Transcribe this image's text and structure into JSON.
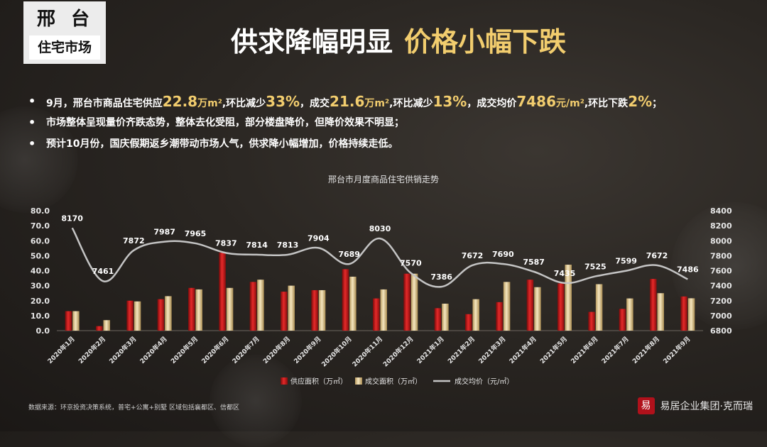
{
  "badge": {
    "city": "邢台",
    "subtitle": "住宅市场"
  },
  "headline": {
    "part1": "供求降幅明显",
    "part2": "价格小幅下跌"
  },
  "bullets": {
    "line1": {
      "p1": "9月，邢台市商品住宅供应",
      "v1": "22.8",
      "u1": "万m²",
      "p2": ",环比减少",
      "v2": "33%",
      "p3": "，成交",
      "v3": "21.6",
      "u3": "万m²",
      "p4": ",环比减少",
      "v4": "13%",
      "p5": "，成交均价",
      "v5": "7486",
      "u5": "元/m²",
      "p6": ",环比下跌",
      "v6": "2%",
      "p7": "；"
    },
    "line2": "市场整体呈现量价齐跌态势，整体去化受阻，部分楼盘降价，但降价效果不明显；",
    "line3": "预计10月份，国庆假期返乡潮带动市场人气，供求降小幅增加，价格持续走低。"
  },
  "footer": {
    "source": "数据来源：环京投资决策系统，普宅+公寓+别墅    区域包括襄都区、信都区",
    "logo_seal": "易",
    "logo_text": "易居企业集团·克而瑞"
  },
  "colors": {
    "supply": "#d11a1a",
    "deal": "#e8d3a0",
    "price": "#bdbdbd",
    "accent": "#f2cd6e"
  },
  "chart_data": {
    "type": "bar",
    "title": "邢台市月度商品住宅供销走势",
    "categories": [
      "2020年1月",
      "2020年2月",
      "2020年3月",
      "2020年4月",
      "2020年5月",
      "2020年6月",
      "2020年7月",
      "2020年8月",
      "2020年9月",
      "2020年10月",
      "2020年11月",
      "2020年12月",
      "2021年1月",
      "2021年2月",
      "2021年3月",
      "2021年4月",
      "2021年5月",
      "2021年6月",
      "2021年7月",
      "2021年8月",
      "2021年9月"
    ],
    "series": [
      {
        "name": "供应面积（万㎡）",
        "type": "bar",
        "axis": "left",
        "values": [
          13,
          3,
          20,
          21,
          28.5,
          52,
          32.5,
          26,
          27,
          41,
          21.5,
          38,
          15,
          11,
          19,
          34,
          31.5,
          12.5,
          14.5,
          34.5,
          22.8
        ]
      },
      {
        "name": "成交面积（万㎡）",
        "type": "bar",
        "axis": "left",
        "values": [
          13,
          7,
          19.5,
          23,
          27.5,
          28.5,
          34,
          30,
          27,
          36,
          27.5,
          38,
          18,
          21,
          32.5,
          29,
          44,
          31,
          21.5,
          25,
          21.6
        ]
      },
      {
        "name": "成交均价（元/㎡）",
        "type": "line",
        "axis": "right",
        "values": [
          8170,
          7461,
          7872,
          7987,
          7965,
          7837,
          7814,
          7813,
          7904,
          7689,
          8030,
          7570,
          7386,
          7672,
          7690,
          7587,
          7435,
          7525,
          7599,
          7672,
          7486
        ]
      }
    ],
    "y_left": {
      "min": 0,
      "max": 80,
      "step": 10,
      "ticks": [
        "0.0",
        "10.0",
        "20.0",
        "30.0",
        "40.0",
        "50.0",
        "60.0",
        "70.0",
        "80.0"
      ]
    },
    "y_right": {
      "min": 6800,
      "max": 8400,
      "step": 200,
      "ticks": [
        "6800",
        "7000",
        "7200",
        "7400",
        "7600",
        "7800",
        "8000",
        "8200",
        "8400"
      ]
    },
    "legend_position": "bottom-center",
    "grid": false
  }
}
